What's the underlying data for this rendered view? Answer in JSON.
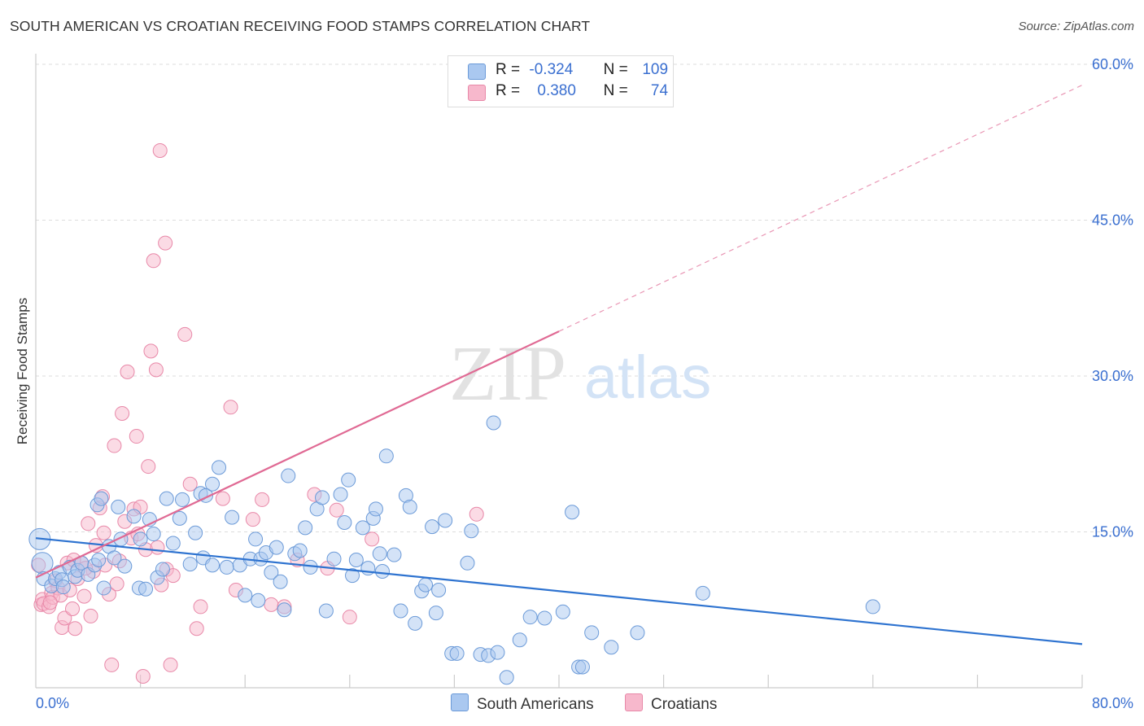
{
  "title": "SOUTH AMERICAN VS CROATIAN RECEIVING FOOD STAMPS CORRELATION CHART",
  "source": "Source: ZipAtlas.com",
  "watermark": {
    "zip": "ZIP",
    "atlas": "atlas"
  },
  "colors": {
    "blue_fill": "#aac8f0",
    "blue_stroke": "#6b9ad8",
    "blue_line": "#2e73d0",
    "pink_fill": "#f7b8cc",
    "pink_stroke": "#e888a8",
    "pink_line": "#e06a94",
    "axis_text": "#3a6fd0",
    "grid": "#dddddd"
  },
  "legend": {
    "rows": [
      {
        "r_label": "R =",
        "r_value": "-0.324",
        "n_label": "N =",
        "n_value": "109"
      },
      {
        "r_label": "R =",
        "r_value": "0.380",
        "n_label": "N =",
        "n_value": "74"
      }
    ]
  },
  "bottom_legend": {
    "south": "South Americans",
    "croatians": "Croatians"
  },
  "chart_data": {
    "type": "scatter",
    "title": "SOUTH AMERICAN VS CROATIAN RECEIVING FOOD STAMPS CORRELATION CHART",
    "xlabel": "",
    "ylabel": "Receiving Food Stamps",
    "xlim": [
      0,
      80
    ],
    "ylim": [
      0,
      60
    ],
    "x_ticks": [
      "0.0%",
      "80.0%"
    ],
    "y_ticks": [
      {
        "value": 15,
        "label": "15.0%"
      },
      {
        "value": 30,
        "label": "30.0%"
      },
      {
        "value": 45,
        "label": "45.0%"
      },
      {
        "value": 60,
        "label": "60.0%"
      }
    ],
    "grid": true,
    "legend_position": "top-center",
    "series": [
      {
        "name": "South Americans",
        "color": "blue",
        "trend": {
          "x": [
            0,
            80
          ],
          "y": [
            14.4,
            4.2
          ],
          "dashed_after": null
        },
        "points": [
          [
            0.3,
            14.3
          ],
          [
            0.5,
            12.0
          ],
          [
            0.6,
            10.5
          ],
          [
            1.2,
            9.8
          ],
          [
            1.5,
            10.5
          ],
          [
            1.8,
            11.1
          ],
          [
            2.0,
            10.4
          ],
          [
            2.6,
            11.6
          ],
          [
            3.0,
            10.7
          ],
          [
            3.2,
            11.3
          ],
          [
            3.5,
            12.0
          ],
          [
            4.0,
            10.9
          ],
          [
            4.5,
            11.8
          ],
          [
            4.8,
            12.3
          ],
          [
            5.2,
            9.6
          ],
          [
            5.6,
            13.6
          ],
          [
            6.0,
            12.5
          ],
          [
            6.5,
            14.3
          ],
          [
            4.7,
            17.6
          ],
          [
            6.3,
            17.4
          ],
          [
            7.5,
            16.5
          ],
          [
            8.0,
            14.3
          ],
          [
            7.9,
            9.6
          ],
          [
            8.7,
            16.2
          ],
          [
            9.3,
            10.6
          ],
          [
            9.7,
            11.4
          ],
          [
            10.0,
            18.2
          ],
          [
            10.5,
            13.9
          ],
          [
            11.0,
            16.3
          ],
          [
            11.2,
            18.1
          ],
          [
            11.8,
            11.9
          ],
          [
            12.2,
            14.9
          ],
          [
            12.6,
            18.7
          ],
          [
            13.0,
            18.5
          ],
          [
            13.5,
            19.6
          ],
          [
            12.8,
            12.5
          ],
          [
            13.5,
            11.8
          ],
          [
            14.0,
            21.2
          ],
          [
            14.6,
            11.6
          ],
          [
            15.0,
            16.4
          ],
          [
            15.6,
            11.8
          ],
          [
            16.0,
            8.9
          ],
          [
            16.4,
            12.4
          ],
          [
            16.8,
            14.3
          ],
          [
            17.2,
            12.4
          ],
          [
            17.6,
            13.0
          ],
          [
            18.0,
            11.1
          ],
          [
            18.4,
            13.5
          ],
          [
            18.7,
            10.2
          ],
          [
            19.0,
            7.5
          ],
          [
            19.3,
            20.4
          ],
          [
            19.8,
            12.9
          ],
          [
            20.2,
            13.2
          ],
          [
            20.6,
            15.4
          ],
          [
            21.0,
            11.6
          ],
          [
            21.5,
            17.2
          ],
          [
            21.9,
            18.3
          ],
          [
            22.2,
            7.4
          ],
          [
            22.8,
            12.4
          ],
          [
            23.3,
            18.6
          ],
          [
            23.6,
            15.9
          ],
          [
            23.9,
            20.0
          ],
          [
            24.2,
            10.8
          ],
          [
            24.5,
            12.3
          ],
          [
            25.0,
            15.4
          ],
          [
            25.4,
            11.5
          ],
          [
            25.8,
            16.3
          ],
          [
            26.0,
            17.2
          ],
          [
            26.3,
            12.9
          ],
          [
            26.8,
            22.3
          ],
          [
            27.4,
            12.8
          ],
          [
            27.9,
            7.4
          ],
          [
            28.3,
            18.5
          ],
          [
            28.6,
            17.4
          ],
          [
            29.0,
            6.2
          ],
          [
            29.5,
            9.3
          ],
          [
            29.8,
            9.9
          ],
          [
            30.3,
            15.5
          ],
          [
            30.6,
            7.2
          ],
          [
            30.8,
            9.4
          ],
          [
            31.3,
            16.1
          ],
          [
            31.8,
            3.3
          ],
          [
            32.2,
            3.3
          ],
          [
            33.0,
            12.0
          ],
          [
            33.3,
            15.1
          ],
          [
            34.0,
            3.2
          ],
          [
            34.6,
            3.1
          ],
          [
            35.0,
            25.5
          ],
          [
            35.3,
            3.4
          ],
          [
            36.0,
            1.0
          ],
          [
            37.0,
            4.6
          ],
          [
            37.8,
            6.8
          ],
          [
            38.9,
            6.7
          ],
          [
            40.3,
            7.3
          ],
          [
            41.0,
            16.9
          ],
          [
            41.5,
            2.0
          ],
          [
            41.8,
            2.0
          ],
          [
            42.5,
            5.3
          ],
          [
            44.0,
            3.9
          ],
          [
            46.0,
            5.3
          ],
          [
            51.0,
            9.1
          ],
          [
            64.0,
            7.8
          ],
          [
            5.0,
            18.2
          ],
          [
            6.8,
            11.7
          ],
          [
            8.4,
            9.5
          ],
          [
            2.1,
            9.7
          ],
          [
            9.0,
            14.8
          ],
          [
            17.0,
            8.4
          ],
          [
            26.5,
            11.2
          ]
        ]
      },
      {
        "name": "Croatians",
        "color": "pink",
        "trend": {
          "x": [
            0,
            80
          ],
          "y": [
            10.6,
            58.0
          ],
          "solid_until_x": 40
        },
        "points": [
          [
            0.2,
            11.8
          ],
          [
            0.4,
            8.0
          ],
          [
            0.5,
            8.5
          ],
          [
            0.6,
            8.1
          ],
          [
            1.0,
            7.8
          ],
          [
            1.2,
            9.1
          ],
          [
            1.3,
            8.7
          ],
          [
            1.5,
            10.3
          ],
          [
            1.7,
            9.6
          ],
          [
            1.9,
            8.9
          ],
          [
            2.0,
            5.8
          ],
          [
            2.2,
            6.7
          ],
          [
            2.4,
            12.0
          ],
          [
            2.6,
            9.4
          ],
          [
            2.8,
            7.6
          ],
          [
            3.0,
            5.7
          ],
          [
            3.2,
            10.5
          ],
          [
            3.5,
            12.0
          ],
          [
            3.7,
            8.8
          ],
          [
            4.0,
            15.8
          ],
          [
            4.2,
            6.9
          ],
          [
            4.4,
            11.2
          ],
          [
            4.6,
            13.7
          ],
          [
            4.9,
            17.3
          ],
          [
            5.1,
            18.4
          ],
          [
            5.3,
            11.8
          ],
          [
            5.6,
            9.0
          ],
          [
            5.8,
            2.2
          ],
          [
            6.0,
            23.3
          ],
          [
            6.2,
            10.0
          ],
          [
            6.4,
            12.2
          ],
          [
            6.6,
            26.4
          ],
          [
            6.8,
            16.0
          ],
          [
            7.0,
            30.4
          ],
          [
            7.3,
            14.4
          ],
          [
            7.5,
            17.2
          ],
          [
            7.7,
            24.2
          ],
          [
            8.0,
            17.4
          ],
          [
            8.2,
            1.1
          ],
          [
            8.4,
            13.3
          ],
          [
            8.6,
            21.3
          ],
          [
            8.8,
            32.4
          ],
          [
            9.0,
            41.1
          ],
          [
            9.2,
            30.6
          ],
          [
            9.5,
            51.7
          ],
          [
            9.6,
            9.9
          ],
          [
            9.9,
            42.8
          ],
          [
            10.0,
            11.4
          ],
          [
            10.3,
            2.2
          ],
          [
            10.5,
            10.8
          ],
          [
            11.4,
            34.0
          ],
          [
            11.8,
            19.6
          ],
          [
            12.3,
            5.7
          ],
          [
            12.6,
            7.8
          ],
          [
            14.3,
            18.2
          ],
          [
            14.9,
            27.0
          ],
          [
            15.3,
            9.4
          ],
          [
            16.6,
            16.2
          ],
          [
            17.3,
            18.1
          ],
          [
            18.0,
            8.0
          ],
          [
            19.0,
            7.8
          ],
          [
            20.0,
            12.3
          ],
          [
            21.3,
            18.6
          ],
          [
            22.3,
            11.5
          ],
          [
            23.0,
            17.1
          ],
          [
            24.0,
            6.8
          ],
          [
            25.7,
            14.3
          ],
          [
            33.7,
            16.7
          ],
          [
            3.8,
            11.5
          ],
          [
            5.2,
            14.9
          ],
          [
            7.8,
            14.8
          ],
          [
            1.1,
            8.2
          ],
          [
            2.9,
            12.3
          ],
          [
            9.3,
            13.5
          ]
        ]
      }
    ]
  }
}
